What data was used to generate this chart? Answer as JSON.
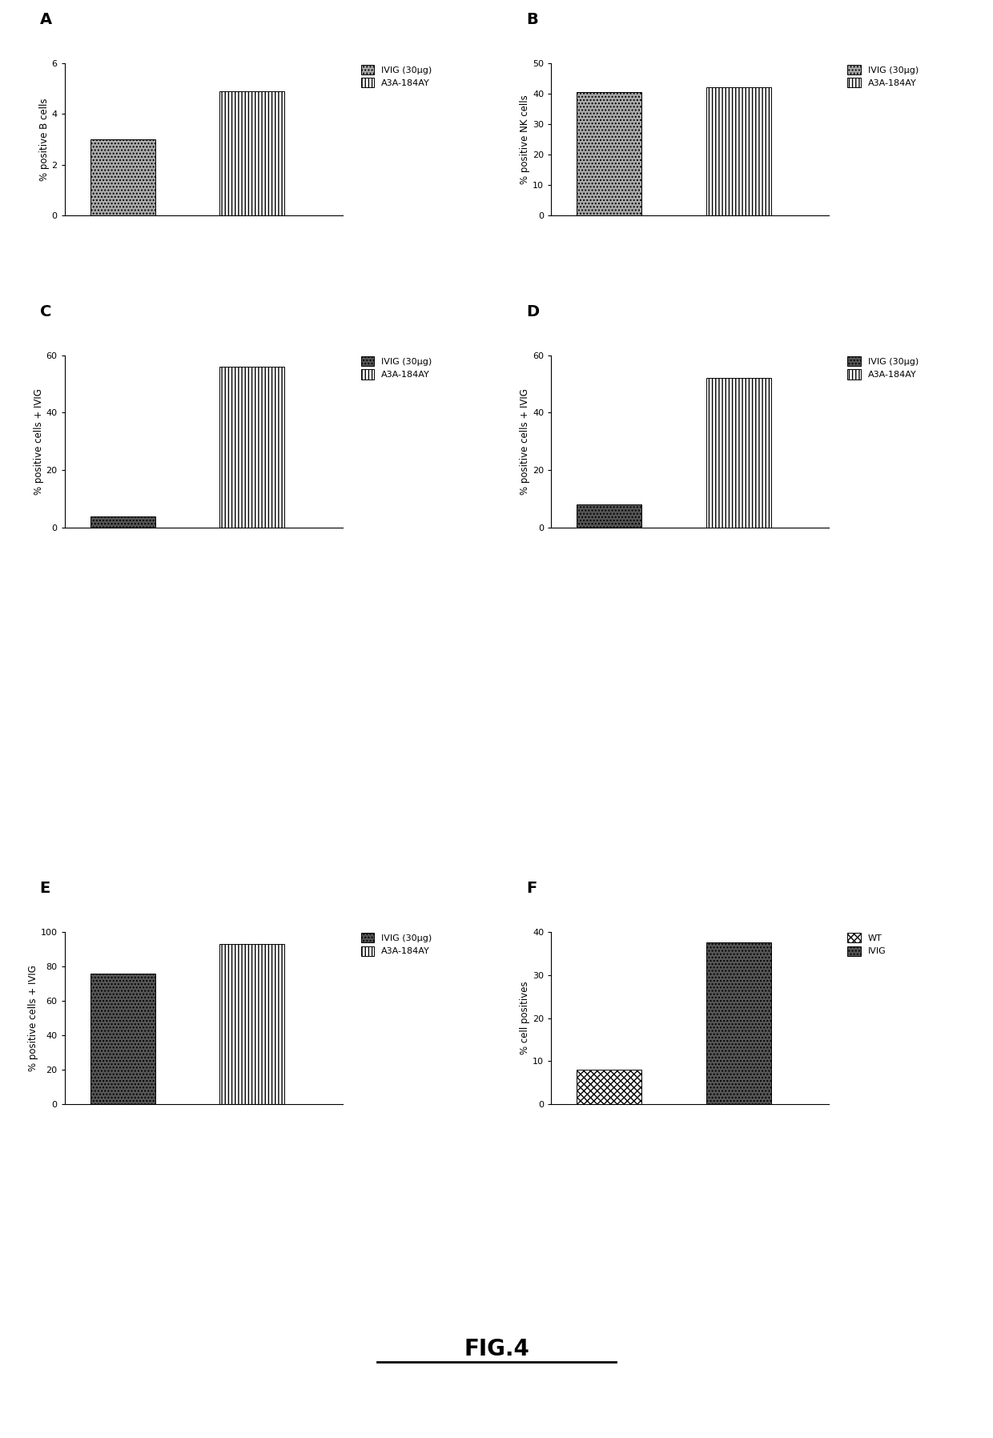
{
  "panels": [
    {
      "label": "A",
      "ylabel": "% positive B cells",
      "ylim": [
        0,
        6
      ],
      "yticks": [
        0,
        2,
        4,
        6
      ],
      "bars": [
        {
          "label": "IVIG (30μg)",
          "value": 3.0,
          "hatch": "....",
          "color": "#aaaaaa",
          "edgecolor": "#000000"
        },
        {
          "label": "A3A-184AY",
          "value": 4.9,
          "hatch": "||||",
          "color": "#ffffff",
          "edgecolor": "#000000"
        }
      ],
      "legend_labels": [
        "IVIG (30μg)",
        "A3A-184AY"
      ]
    },
    {
      "label": "B",
      "ylabel": "% positive NK cells",
      "ylim": [
        0,
        50
      ],
      "yticks": [
        0,
        10,
        20,
        30,
        40,
        50
      ],
      "bars": [
        {
          "label": "IVIG (30μg)",
          "value": 40.5,
          "hatch": "....",
          "color": "#aaaaaa",
          "edgecolor": "#000000"
        },
        {
          "label": "A3A-184AY",
          "value": 42.0,
          "hatch": "||||",
          "color": "#ffffff",
          "edgecolor": "#000000"
        }
      ],
      "legend_labels": [
        "IVIG (30μg)",
        "A3A-184AY"
      ]
    },
    {
      "label": "C",
      "ylabel": "% positive cells + IVIG",
      "ylim": [
        0,
        60
      ],
      "yticks": [
        0,
        20,
        40,
        60
      ],
      "bars": [
        {
          "label": "IVIG (30μg)",
          "value": 4.0,
          "hatch": "....",
          "color": "#555555",
          "edgecolor": "#000000"
        },
        {
          "label": "A3A-184AY",
          "value": 56.0,
          "hatch": "||||",
          "color": "#ffffff",
          "edgecolor": "#000000"
        }
      ],
      "legend_labels": [
        "IVIG (30μg)",
        "A3A-184AY"
      ]
    },
    {
      "label": "D",
      "ylabel": "% positive cells + IVIG",
      "ylim": [
        0,
        60
      ],
      "yticks": [
        0,
        20,
        40,
        60
      ],
      "bars": [
        {
          "label": "IVIG (30μg)",
          "value": 8.0,
          "hatch": "....",
          "color": "#555555",
          "edgecolor": "#000000"
        },
        {
          "label": "A3A-184AY",
          "value": 52.0,
          "hatch": "||||",
          "color": "#ffffff",
          "edgecolor": "#000000"
        }
      ],
      "legend_labels": [
        "IVIG (30μg)",
        "A3A-184AY"
      ]
    },
    {
      "label": "E",
      "ylabel": "% positive cells + IVIG",
      "ylim": [
        0,
        100
      ],
      "yticks": [
        0,
        20,
        40,
        60,
        80,
        100
      ],
      "bars": [
        {
          "label": "IVIG (30μg)",
          "value": 76.0,
          "hatch": "....",
          "color": "#555555",
          "edgecolor": "#000000"
        },
        {
          "label": "A3A-184AY",
          "value": 93.0,
          "hatch": "||||",
          "color": "#ffffff",
          "edgecolor": "#000000"
        }
      ],
      "legend_labels": [
        "IVIG (30μg)",
        "A3A-184AY"
      ]
    },
    {
      "label": "F",
      "ylabel": "% cell positives",
      "ylim": [
        0,
        40
      ],
      "yticks": [
        0,
        10,
        20,
        30,
        40
      ],
      "bars": [
        {
          "label": "WT",
          "value": 8.0,
          "hatch": "xxxx",
          "color": "#ffffff",
          "edgecolor": "#000000"
        },
        {
          "label": "IVIG",
          "value": 37.5,
          "hatch": "....",
          "color": "#555555",
          "edgecolor": "#000000"
        }
      ],
      "legend_labels": [
        "WT",
        "IVIG"
      ]
    }
  ],
  "background_color": "#ffffff",
  "bar_width": 0.5,
  "fig_title": "FIG.4",
  "title_fontsize": 20,
  "axis_fontsize": 8.5,
  "label_fontsize": 14,
  "legend_fontsize": 8,
  "tick_fontsize": 8
}
